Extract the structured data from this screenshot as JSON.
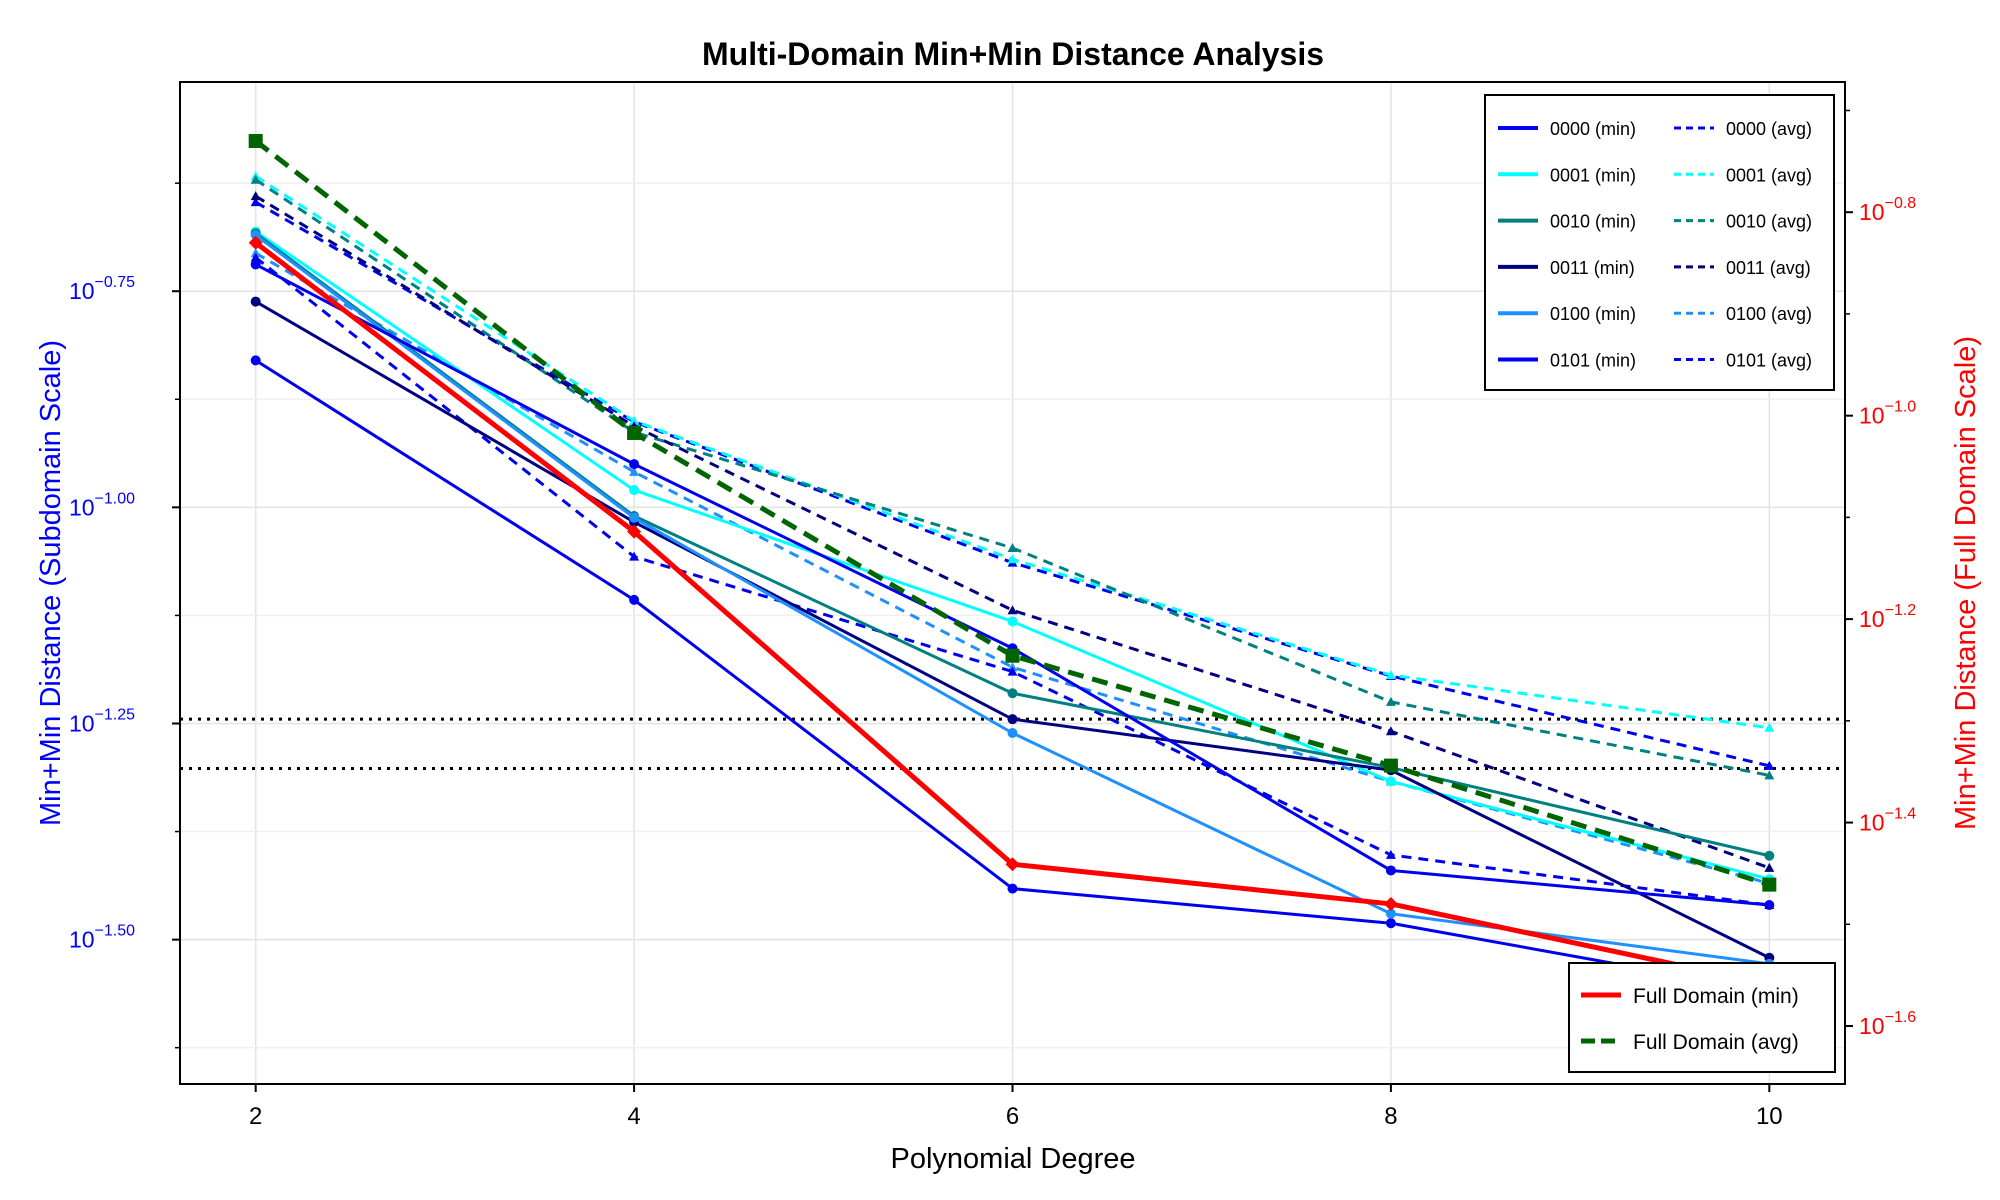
{
  "chart_data": {
    "type": "line",
    "title": "Multi-Domain Min+Min Distance Analysis",
    "xlabel": "Polynomial Degree",
    "ylabel_left": "Min+Min Distance (Subdomain Scale)",
    "ylabel_right": "Min+Min Distance (Full Domain Scale)",
    "x": [
      2,
      4,
      6,
      8,
      10
    ],
    "x_ticks": [
      "2",
      "4",
      "6",
      "8",
      "10"
    ],
    "xlim": [
      1.6,
      10.4
    ],
    "left_axis": {
      "scale": "log10",
      "ylim_exp": [
        -1.667,
        -0.508
      ],
      "tick_exps": [
        -0.75,
        -1.0,
        -1.25,
        -1.5
      ],
      "tick_labels": [
        "10",
        "10",
        "10",
        "10"
      ],
      "tick_sups": [
        "−0.75",
        "−1.00",
        "−1.25",
        "−1.50"
      ],
      "color": "#0000ff"
    },
    "right_axis": {
      "scale": "log10",
      "ylim_exp": [
        -1.657,
        -0.672
      ],
      "tick_exps": [
        -0.8,
        -1.0,
        -1.2,
        -1.4,
        -1.6
      ],
      "tick_labels": [
        "10",
        "10",
        "10",
        "10",
        "10"
      ],
      "tick_sups": [
        "−0.8",
        "−1.0",
        "−1.2",
        "−1.4",
        "−1.6"
      ],
      "color": "#ff0000"
    },
    "grid": true,
    "hlines_left_exp": [
      -1.245,
      -1.302
    ],
    "series": [
      {
        "name": "0000 (min)",
        "axis": "left",
        "style": "solid",
        "marker": "circle",
        "color": "#0000ee",
        "values_exp": [
          -0.83,
          -1.107,
          -1.441,
          -1.481,
          -1.56
        ]
      },
      {
        "name": "0001 (min)",
        "axis": "left",
        "style": "solid",
        "marker": "circle",
        "color": "#00ffff",
        "values_exp": [
          -0.681,
          -0.98,
          -1.132,
          -1.317,
          -1.43
        ]
      },
      {
        "name": "0010 (min)",
        "axis": "left",
        "style": "solid",
        "marker": "circle",
        "color": "#008080",
        "values_exp": [
          -0.683,
          -1.01,
          -1.215,
          -1.301,
          -1.403
        ]
      },
      {
        "name": "0011 (min)",
        "axis": "left",
        "style": "solid",
        "marker": "circle",
        "color": "#000080",
        "values_exp": [
          -0.762,
          -1.017,
          -1.245,
          -1.304,
          -1.521
        ]
      },
      {
        "name": "0100 (min)",
        "axis": "left",
        "style": "solid",
        "marker": "circle",
        "color": "#1e90ff",
        "values_exp": [
          -0.685,
          -1.012,
          -1.261,
          -1.47,
          -1.528
        ]
      },
      {
        "name": "0101 (min)",
        "axis": "left",
        "style": "solid",
        "marker": "circle",
        "color": "#0000ee",
        "values_exp": [
          -0.719,
          -0.95,
          -1.163,
          -1.42,
          -1.46
        ]
      },
      {
        "name": "0000 (avg)",
        "axis": "left",
        "style": "dashed",
        "marker": "triangle",
        "color": "#0000ee",
        "values_exp": [
          -0.647,
          -0.901,
          -1.064,
          -1.195,
          -1.299
        ]
      },
      {
        "name": "0001 (avg)",
        "axis": "left",
        "style": "dashed",
        "marker": "triangle",
        "color": "#00ffff",
        "values_exp": [
          -0.617,
          -0.9,
          -1.06,
          -1.194,
          -1.255
        ]
      },
      {
        "name": "0010 (avg)",
        "axis": "left",
        "style": "dashed",
        "marker": "triangle",
        "color": "#008080",
        "values_exp": [
          -0.621,
          -0.913,
          -1.047,
          -1.225,
          -1.31
        ]
      },
      {
        "name": "0011 (avg)",
        "axis": "left",
        "style": "dashed",
        "marker": "triangle",
        "color": "#000080",
        "values_exp": [
          -0.64,
          -0.906,
          -1.119,
          -1.259,
          -1.417
        ]
      },
      {
        "name": "0100 (avg)",
        "axis": "left",
        "style": "dashed",
        "marker": "triangle",
        "color": "#1e90ff",
        "values_exp": [
          -0.706,
          -0.959,
          -1.185,
          -1.317,
          -1.435
        ]
      },
      {
        "name": "0101 (avg)",
        "axis": "left",
        "style": "dashed",
        "marker": "triangle",
        "color": "#0000ee",
        "values_exp": [
          -0.711,
          -1.057,
          -1.19,
          -1.402,
          -1.46
        ]
      },
      {
        "name": "Full Domain (min)",
        "axis": "right",
        "style": "solid-thick",
        "marker": "diamond",
        "color": "#ff0000",
        "values_exp": [
          -0.83,
          -1.114,
          -1.441,
          -1.48,
          -1.559
        ]
      },
      {
        "name": "Full Domain (avg)",
        "axis": "right",
        "style": "dashed-thick",
        "marker": "square",
        "color": "#006400",
        "values_exp": [
          -0.73,
          -1.017,
          -1.236,
          -1.344,
          -1.461
        ]
      }
    ],
    "legend_main": {
      "placement": "top-right",
      "entries": [
        {
          "label": "0000 (min)",
          "color": "#0000ee",
          "style": "solid"
        },
        {
          "label": "0000 (avg)",
          "color": "#0000ee",
          "style": "dashed"
        },
        {
          "label": "0001 (min)",
          "color": "#00ffff",
          "style": "solid"
        },
        {
          "label": "0001 (avg)",
          "color": "#00ffff",
          "style": "dashed"
        },
        {
          "label": "0010 (min)",
          "color": "#008080",
          "style": "solid"
        },
        {
          "label": "0010 (avg)",
          "color": "#008080",
          "style": "dashed"
        },
        {
          "label": "0011 (min)",
          "color": "#000080",
          "style": "solid"
        },
        {
          "label": "0011 (avg)",
          "color": "#000080",
          "style": "dashed"
        },
        {
          "label": "0100 (min)",
          "color": "#1e90ff",
          "style": "solid"
        },
        {
          "label": "0100 (avg)",
          "color": "#1e90ff",
          "style": "dashed"
        },
        {
          "label": "0101 (min)",
          "color": "#0000ee",
          "style": "solid"
        },
        {
          "label": "0101 (avg)",
          "color": "#0000ee",
          "style": "dashed"
        }
      ]
    },
    "legend_full": {
      "placement": "bottom-right",
      "entries": [
        {
          "label": "Full Domain (min)",
          "color": "#ff0000",
          "style": "solid"
        },
        {
          "label": "Full Domain (avg)",
          "color": "#006400",
          "style": "dashed"
        }
      ]
    }
  }
}
